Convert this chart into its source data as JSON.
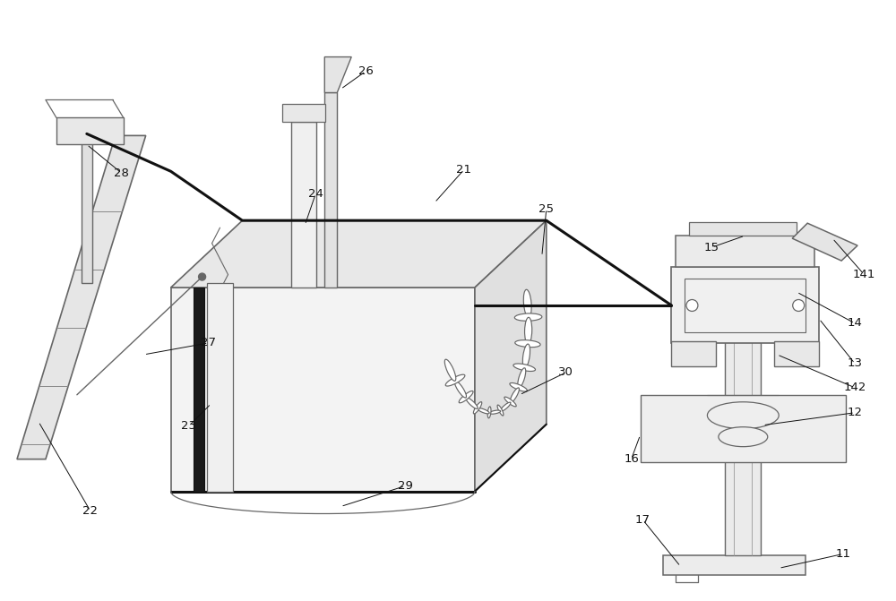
{
  "bg_color": "#ffffff",
  "lc": "#666666",
  "dlc": "#111111",
  "label_color": "#111111",
  "fig_width": 10.0,
  "fig_height": 6.71,
  "dpi": 100
}
